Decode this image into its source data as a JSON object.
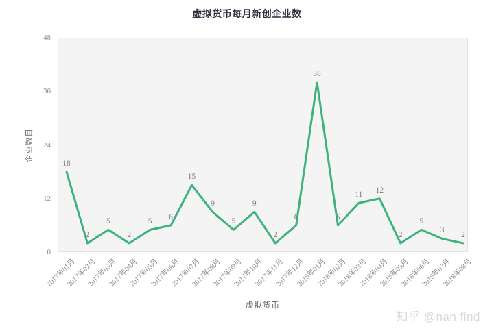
{
  "title": "虚拟货币每月新创企业数",
  "watermark": "知乎 @nan find",
  "colors": {
    "line": "#3cb37a",
    "plot_background": "#f4f4f4",
    "plot_border": "#e3e3e3",
    "title_text": "#2d2d3f",
    "tick_text": "#8e8e8e",
    "data_label_text": "#7d7d7d",
    "watermark_text": "#d8d8d8"
  },
  "chart_data": {
    "type": "line",
    "title": "虚拟货币每月新创企业数",
    "xlabel": "虚拟货币",
    "ylabel": "企业数目",
    "categories": [
      "2017年01月",
      "2017年02月",
      "2017年03月",
      "2017年04月",
      "2017年05月",
      "2017年06月",
      "2017年07月",
      "2017年08月",
      "2017年09月",
      "2017年10月",
      "2017年11月",
      "2017年12月",
      "2018年01月",
      "2018年02月",
      "2018年03月",
      "2018年04月",
      "2018年05月",
      "2018年06月",
      "2018年07月",
      "2018年08月"
    ],
    "values": [
      18,
      2,
      5,
      2,
      5,
      6,
      15,
      9,
      5,
      9,
      2,
      6,
      38,
      6,
      11,
      12,
      2,
      5,
      3,
      2
    ],
    "ylim": [
      0,
      48
    ],
    "yticks": [
      0,
      12,
      24,
      36,
      48
    ],
    "grid": false,
    "legend": "none",
    "data_labels": true
  }
}
